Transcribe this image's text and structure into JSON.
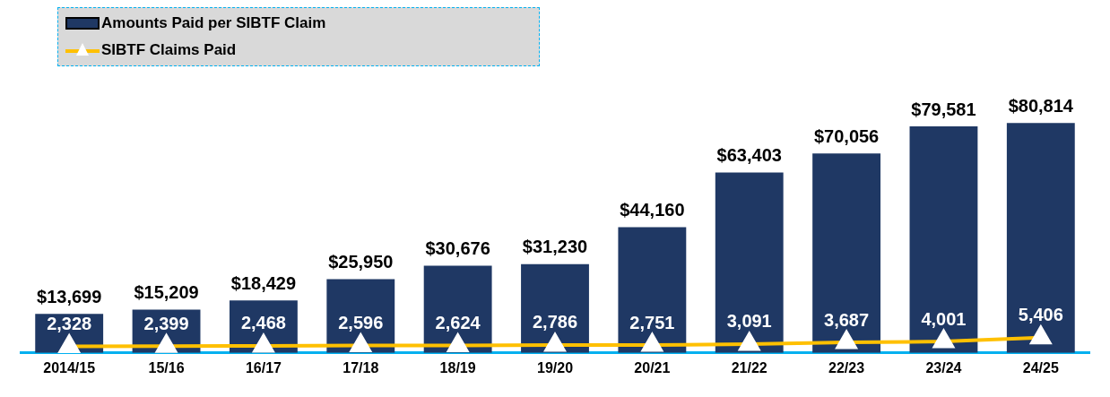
{
  "chart_data": {
    "type": "bar",
    "categories": [
      "2014/15",
      "15/16",
      "16/17",
      "17/18",
      "18/19",
      "19/20",
      "20/21",
      "21/22",
      "22/23",
      "23/24",
      "24/25"
    ],
    "series": [
      {
        "name": "Amounts Paid per SIBTF Claim",
        "color": "#1f3864",
        "values": [
          13699,
          15209,
          18429,
          25950,
          30676,
          31230,
          44160,
          63403,
          70056,
          79581,
          80814
        ],
        "value_labels": [
          "$13,699",
          "$15,209",
          "$18,429",
          "$25,950",
          "$30,676",
          "$31,230",
          "$44,160",
          "$63,403",
          "$70,056",
          "$79,581",
          "$80,814"
        ]
      },
      {
        "name": "SIBTF Claims Paid",
        "type": "line",
        "color": "#ffc000",
        "marker": "triangle",
        "values": [
          2328,
          2399,
          2468,
          2596,
          2624,
          2786,
          2751,
          3091,
          3687,
          4001,
          5406
        ],
        "value_labels": [
          "2,328",
          "2,399",
          "2,468",
          "2,596",
          "2,624",
          "2,786",
          "2,751",
          "3,091",
          "3,687",
          "4,001",
          "5,406"
        ]
      }
    ],
    "legend": "top left",
    "tick_labels": "x"
  }
}
